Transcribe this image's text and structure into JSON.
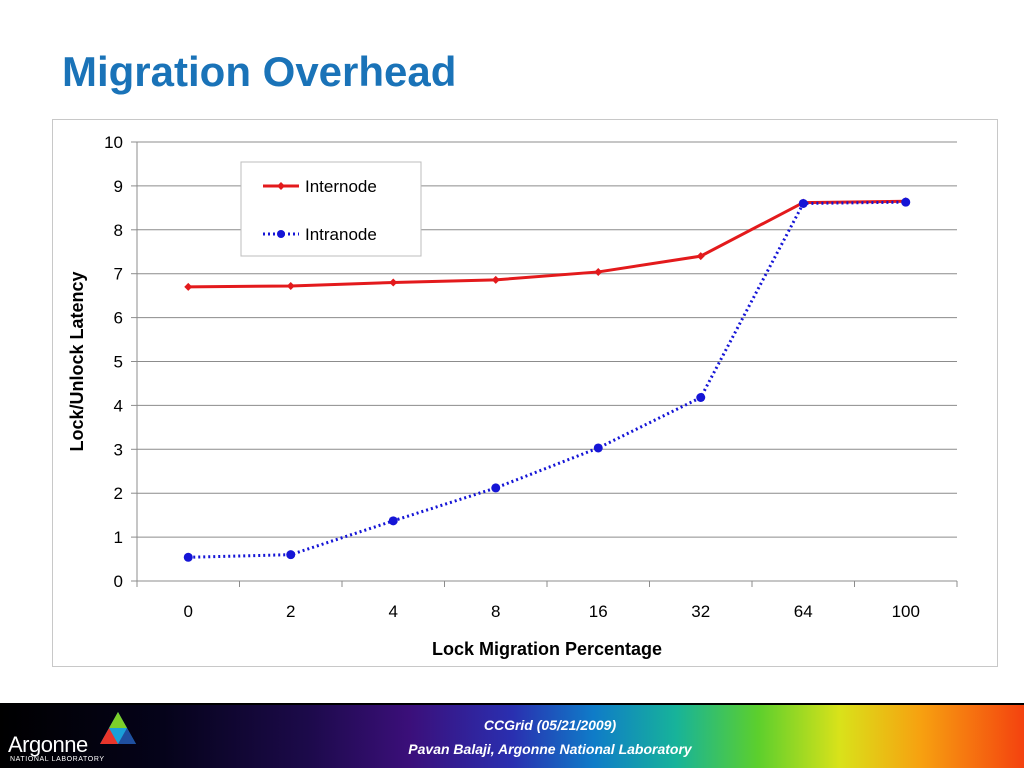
{
  "slide": {
    "title": "Migration Overhead"
  },
  "footer": {
    "line1": "CCGrid (05/21/2009)",
    "line2": "Pavan Balaji, Argonne National Laboratory",
    "logo_text": "Argonne",
    "logo_sub": "NATIONAL LABORATORY",
    "logo_icon": "argonne-triangle-icon"
  },
  "chart_data": {
    "type": "line",
    "title": "",
    "xlabel": "Lock Migration Percentage",
    "ylabel": "Lock/Unlock Latency",
    "categories": [
      "0",
      "2",
      "4",
      "8",
      "16",
      "32",
      "64",
      "100"
    ],
    "ylim": [
      0,
      10
    ],
    "yticks": [
      "0",
      "1",
      "2",
      "3",
      "4",
      "5",
      "6",
      "7",
      "8",
      "9",
      "10"
    ],
    "grid": true,
    "legend_position": "top-left",
    "series": [
      {
        "name": "Internode",
        "values": [
          6.7,
          6.72,
          6.8,
          6.86,
          7.04,
          7.4,
          8.62,
          8.65
        ],
        "color": "#e31a1c",
        "marker": "diamond",
        "dash": "solid"
      },
      {
        "name": "Intranode",
        "values": [
          0.54,
          0.6,
          1.37,
          2.12,
          3.03,
          4.18,
          8.6,
          8.63
        ],
        "color": "#1515d6",
        "marker": "circle",
        "dash": "dotted"
      }
    ]
  }
}
